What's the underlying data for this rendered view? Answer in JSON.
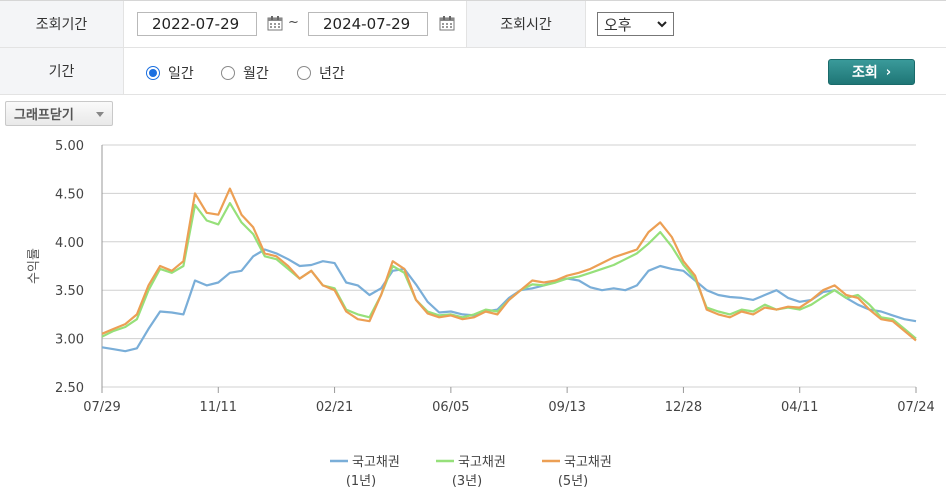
{
  "form": {
    "period_label": "조회기간",
    "start_date": "2022-07-29",
    "tilde": "~",
    "end_date": "2024-07-29",
    "time_label": "조회시간",
    "time_value": "오후",
    "range_label": "기간",
    "range_options": [
      "일간",
      "월간",
      "년간"
    ],
    "range_selected": 0,
    "query_button": "조회",
    "query_arrow": "›"
  },
  "graph_toggle": "그래프닫기",
  "icons": {
    "calendar": "calendar-icon",
    "dropdown": "chevron-down-icon"
  },
  "colors": {
    "series1": "#7aaed8",
    "series2": "#96e07a",
    "series3": "#ec9f54",
    "button": "#2a8686",
    "grid": "#d0d0d0"
  },
  "chart_data": {
    "type": "line",
    "ylabel": "수익률",
    "ylim": [
      2.5,
      5.0
    ],
    "yticks": [
      "5.00",
      "4.50",
      "4.00",
      "3.50",
      "3.00",
      "2.50"
    ],
    "xticks": [
      "07/29",
      "11/11",
      "02/21",
      "06/05",
      "09/13",
      "12/28",
      "04/11",
      "07/24"
    ],
    "series": [
      {
        "name": "국고채권",
        "name_sub": "(1년)",
        "values": [
          2.91,
          2.89,
          2.87,
          2.9,
          3.1,
          3.28,
          3.27,
          3.25,
          3.6,
          3.55,
          3.58,
          3.68,
          3.7,
          3.85,
          3.92,
          3.88,
          3.82,
          3.75,
          3.76,
          3.8,
          3.78,
          3.58,
          3.55,
          3.45,
          3.52,
          3.7,
          3.72,
          3.56,
          3.38,
          3.27,
          3.28,
          3.25,
          3.24,
          3.28,
          3.3,
          3.42,
          3.5,
          3.52,
          3.55,
          3.6,
          3.62,
          3.6,
          3.53,
          3.5,
          3.52,
          3.5,
          3.55,
          3.7,
          3.75,
          3.72,
          3.7,
          3.6,
          3.5,
          3.45,
          3.43,
          3.42,
          3.4,
          3.45,
          3.5,
          3.42,
          3.38,
          3.4,
          3.48,
          3.5,
          3.42,
          3.35,
          3.3,
          3.28,
          3.24,
          3.2,
          3.18
        ]
      },
      {
        "name": "국고채권",
        "name_sub": "(3년)",
        "values": [
          3.02,
          3.08,
          3.12,
          3.2,
          3.5,
          3.72,
          3.68,
          3.75,
          4.38,
          4.22,
          4.18,
          4.4,
          4.2,
          4.08,
          3.85,
          3.82,
          3.72,
          3.62,
          3.7,
          3.55,
          3.52,
          3.3,
          3.25,
          3.22,
          3.45,
          3.75,
          3.68,
          3.4,
          3.28,
          3.24,
          3.25,
          3.22,
          3.25,
          3.3,
          3.28,
          3.4,
          3.5,
          3.56,
          3.55,
          3.58,
          3.62,
          3.64,
          3.68,
          3.72,
          3.76,
          3.82,
          3.88,
          3.98,
          4.1,
          3.95,
          3.76,
          3.62,
          3.32,
          3.28,
          3.25,
          3.3,
          3.28,
          3.35,
          3.3,
          3.32,
          3.3,
          3.35,
          3.43,
          3.5,
          3.42,
          3.45,
          3.35,
          3.22,
          3.2,
          3.1,
          3.0
        ]
      },
      {
        "name": "국고채권",
        "name_sub": "(5년)",
        "values": [
          3.05,
          3.1,
          3.15,
          3.25,
          3.55,
          3.75,
          3.7,
          3.8,
          4.5,
          4.3,
          4.28,
          4.55,
          4.28,
          4.15,
          3.88,
          3.85,
          3.75,
          3.62,
          3.7,
          3.55,
          3.5,
          3.28,
          3.2,
          3.18,
          3.45,
          3.8,
          3.72,
          3.4,
          3.26,
          3.22,
          3.24,
          3.2,
          3.22,
          3.28,
          3.25,
          3.4,
          3.5,
          3.6,
          3.58,
          3.6,
          3.65,
          3.68,
          3.72,
          3.78,
          3.84,
          3.88,
          3.92,
          4.1,
          4.2,
          4.05,
          3.8,
          3.65,
          3.3,
          3.25,
          3.22,
          3.28,
          3.25,
          3.32,
          3.3,
          3.33,
          3.32,
          3.4,
          3.5,
          3.55,
          3.45,
          3.42,
          3.3,
          3.2,
          3.18,
          3.08,
          2.98
        ]
      }
    ]
  }
}
